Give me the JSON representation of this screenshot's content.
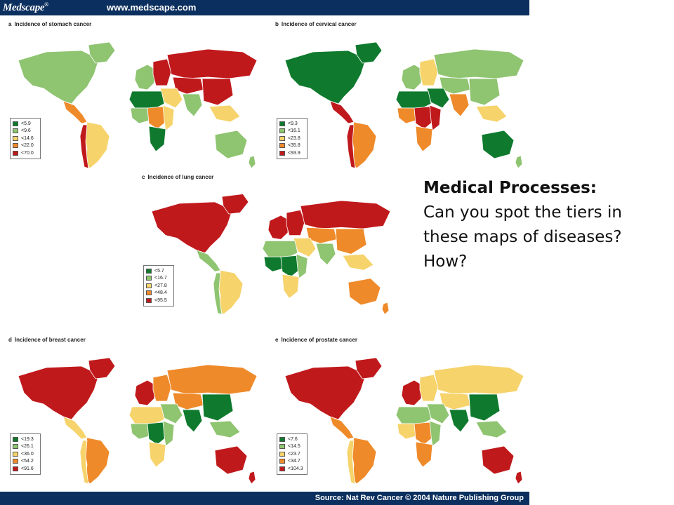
{
  "header": {
    "logo": "Medscape",
    "logo_mark": "®",
    "url": "www.medscape.com"
  },
  "colors": {
    "header_bg": "#0b2f5e",
    "ocean": "#ffffff",
    "tier_1": "#0f7a2e",
    "tier_2": "#8fc471",
    "tier_3": "#f6d36b",
    "tier_4": "#ef8a2a",
    "tier_5": "#c0191c"
  },
  "maps": [
    {
      "letter": "a",
      "title": "Incidence of stomach cancer",
      "legend": [
        "<5.9",
        "<9.6",
        "<14.6",
        "<22.0",
        "<70.0"
      ],
      "regions": {
        "north_america": 2,
        "greenland": 2,
        "central_america": 4,
        "south_america": 3,
        "andes": 5,
        "europe_west": 2,
        "europe_east": 5,
        "russia": 5,
        "central_asia": 5,
        "middle_east": 3,
        "south_asia": 2,
        "east_asia": 5,
        "southeast_asia": 3,
        "north_africa": 1,
        "west_africa": 2,
        "central_africa": 4,
        "east_africa": 3,
        "south_africa": 1,
        "australia": 2,
        "new_zealand": 2
      }
    },
    {
      "letter": "b",
      "title": "Incidence of cervical cancer",
      "legend": [
        "<9.3",
        "<16.1",
        "<23.8",
        "<35.8",
        "<93.9"
      ],
      "regions": {
        "north_america": 1,
        "greenland": 1,
        "central_america": 5,
        "south_america": 4,
        "andes": 5,
        "europe_west": 2,
        "europe_east": 3,
        "russia": 2,
        "central_asia": 2,
        "middle_east": 1,
        "south_asia": 4,
        "east_asia": 2,
        "southeast_asia": 3,
        "north_africa": 1,
        "west_africa": 4,
        "central_africa": 5,
        "east_africa": 5,
        "south_africa": 4,
        "australia": 1,
        "new_zealand": 2
      }
    },
    {
      "letter": "c",
      "title": "Incidence of lung cancer",
      "legend": [
        "<5.7",
        "<16.7",
        "<27.8",
        "<48.4",
        "<95.5"
      ],
      "regions": {
        "north_america": 5,
        "greenland": 5,
        "central_america": 2,
        "south_america": 3,
        "andes": 2,
        "europe_west": 5,
        "europe_east": 5,
        "russia": 5,
        "central_asia": 4,
        "middle_east": 3,
        "south_asia": 2,
        "east_asia": 4,
        "southeast_asia": 3,
        "north_africa": 2,
        "west_africa": 1,
        "central_africa": 1,
        "east_africa": 2,
        "south_africa": 3,
        "australia": 4,
        "new_zealand": 4
      }
    },
    {
      "letter": "d",
      "title": "Incidence of breast cancer",
      "legend": [
        "<19.3",
        "<26.1",
        "<36.0",
        "<54.2",
        "<91.6"
      ],
      "regions": {
        "north_america": 5,
        "greenland": 5,
        "central_america": 3,
        "south_america": 4,
        "andes": 3,
        "europe_west": 5,
        "europe_east": 4,
        "russia": 4,
        "central_asia": 4,
        "middle_east": 2,
        "south_asia": 1,
        "east_asia": 1,
        "southeast_asia": 2,
        "north_africa": 3,
        "west_africa": 2,
        "central_africa": 1,
        "east_africa": 2,
        "south_africa": 3,
        "australia": 5,
        "new_zealand": 5
      }
    },
    {
      "letter": "e",
      "title": "Incidence of prostate cancer",
      "legend": [
        "<7.6",
        "<14.5",
        "<23.7",
        "<34.7",
        "<104.3"
      ],
      "regions": {
        "north_america": 5,
        "greenland": 5,
        "central_america": 4,
        "south_america": 4,
        "andes": 3,
        "europe_west": 5,
        "europe_east": 3,
        "russia": 3,
        "central_asia": 3,
        "middle_east": 2,
        "south_asia": 1,
        "east_asia": 1,
        "southeast_asia": 2,
        "north_africa": 2,
        "west_africa": 3,
        "central_africa": 4,
        "east_africa": 2,
        "south_africa": 4,
        "australia": 5,
        "new_zealand": 5
      }
    }
  ],
  "caption": {
    "heading": "Medical Processes:",
    "body": "Can you spot the tiers in these maps of diseases?  How?"
  },
  "footer": {
    "source": "Source: Nat Rev Cancer © 2004 Nature Publishing Group"
  }
}
